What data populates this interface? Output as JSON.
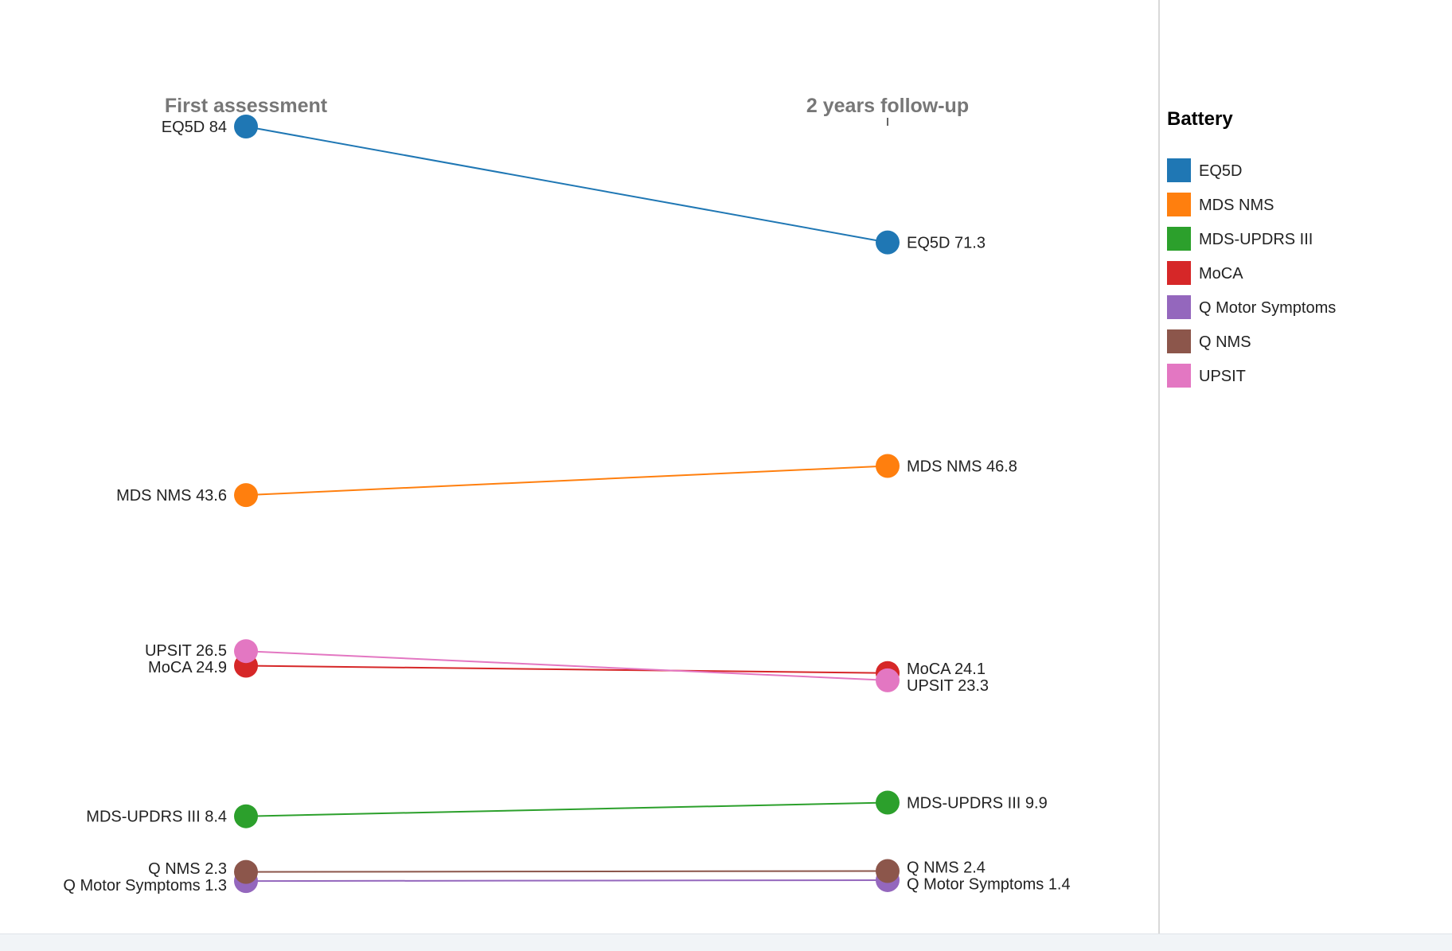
{
  "chart_data": {
    "type": "slope",
    "columns": [
      "First assessment",
      "2 years follow-up"
    ],
    "legend_title": "Battery",
    "legend_position": "right",
    "grid": false,
    "series": [
      {
        "name": "EQ5D",
        "values": [
          84,
          71.3
        ],
        "color": "#1f77b4",
        "labels": [
          "EQ5D 84",
          "EQ5D 71.3"
        ]
      },
      {
        "name": "MDS NMS",
        "values": [
          43.6,
          46.8
        ],
        "color": "#ff7f0e",
        "labels": [
          "MDS NMS 43.6",
          "MDS NMS 46.8"
        ]
      },
      {
        "name": "MDS-UPDRS III",
        "values": [
          8.4,
          9.9
        ],
        "color": "#2ca02c",
        "labels": [
          "MDS-UPDRS III 8.4",
          "MDS-UPDRS III 9.9"
        ]
      },
      {
        "name": "MoCA",
        "values": [
          24.9,
          24.1
        ],
        "color": "#d62728",
        "labels": [
          "MoCA 24.9",
          "MoCA 24.1"
        ]
      },
      {
        "name": "Q Motor Symptoms",
        "values": [
          1.3,
          1.4
        ],
        "color": "#9467bd",
        "labels": [
          "Q Motor Symptoms 1.3",
          "Q Motor Symptoms 1.4"
        ]
      },
      {
        "name": "Q NMS",
        "values": [
          2.3,
          2.4
        ],
        "color": "#8c564b",
        "labels": [
          "Q NMS 2.3",
          "Q NMS 2.4"
        ]
      },
      {
        "name": "UPSIT",
        "values": [
          26.5,
          23.3
        ],
        "color": "#e377c2",
        "labels": [
          "UPSIT 26.5",
          "UPSIT 23.3"
        ]
      }
    ],
    "ylim": [
      0,
      84
    ]
  }
}
